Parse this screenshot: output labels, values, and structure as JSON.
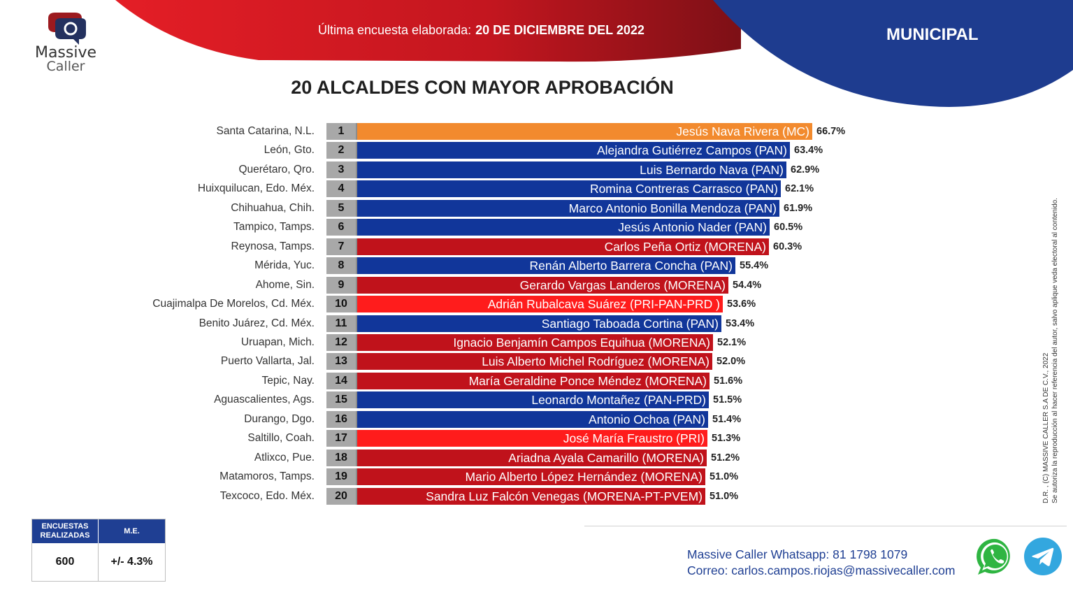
{
  "header": {
    "date_prefix": "Última encuesta elaborada:",
    "date": "20 DE DICIEMBRE DEL 2022",
    "section": "MUNICIPAL"
  },
  "logo": {
    "line1": "Massive",
    "line2": "Caller"
  },
  "colors": {
    "red_dark": "#c2161f",
    "navy": "#1e3c8f",
    "orange": "#f28a2e",
    "pan_blue": "#11369a",
    "morena_red": "#c0121b",
    "pri_red": "#ff1c1c"
  },
  "chart_data": {
    "type": "bar",
    "orientation": "horizontal",
    "title": "20 ALCALDES CON MAYOR APROBACIÓN",
    "xlim": [
      0,
      70
    ],
    "items": [
      {
        "rank": "1",
        "city": "Santa Catarina, N.L.",
        "name": "Jesús Nava Rivera (MC)",
        "value": 66.7,
        "label": "66.7%",
        "color": "#f28a2e"
      },
      {
        "rank": "2",
        "city": "León, Gto.",
        "name": "Alejandra Gutiérrez Campos (PAN)",
        "value": 63.4,
        "label": "63.4%",
        "color": "#11369a"
      },
      {
        "rank": "3",
        "city": "Querétaro, Qro.",
        "name": "Luis Bernardo Nava (PAN)",
        "value": 62.9,
        "label": "62.9%",
        "color": "#11369a"
      },
      {
        "rank": "4",
        "city": "Huixquilucan, Edo. Méx.",
        "name": "Romina Contreras Carrasco  (PAN)",
        "value": 62.1,
        "label": "62.1%",
        "color": "#11369a"
      },
      {
        "rank": "5",
        "city": "Chihuahua, Chih.",
        "name": "Marco Antonio Bonilla Mendoza (PAN)",
        "value": 61.9,
        "label": "61.9%",
        "color": "#11369a"
      },
      {
        "rank": "6",
        "city": "Tampico, Tamps.",
        "name": "Jesús Antonio Nader  (PAN)",
        "value": 60.5,
        "label": "60.5%",
        "color": "#11369a"
      },
      {
        "rank": "7",
        "city": "Reynosa, Tamps.",
        "name": "Carlos Peña Ortiz (MORENA)",
        "value": 60.3,
        "label": "60.3%",
        "color": "#c0121b"
      },
      {
        "rank": "8",
        "city": "Mérida, Yuc.",
        "name": "Renán Alberto Barrera Concha (PAN)",
        "value": 55.4,
        "label": "55.4%",
        "color": "#11369a"
      },
      {
        "rank": "9",
        "city": "Ahome, Sin.",
        "name": "Gerardo Vargas Landeros (MORENA)",
        "value": 54.4,
        "label": "54.4%",
        "color": "#c0121b"
      },
      {
        "rank": "10",
        "city": "Cuajimalpa De Morelos, Cd. Méx.",
        "name": "Adrián Rubalcava Suárez (PRI-PAN-PRD )",
        "value": 53.6,
        "label": "53.6%",
        "color": "#ff1c1c"
      },
      {
        "rank": "11",
        "city": "Benito Juárez, Cd. Méx.",
        "name": "Santiago Taboada Cortina (PAN)",
        "value": 53.4,
        "label": "53.4%",
        "color": "#11369a"
      },
      {
        "rank": "12",
        "city": "Uruapan, Mich.",
        "name": "Ignacio Benjamín Campos Equihua (MORENA)",
        "value": 52.1,
        "label": "52.1%",
        "color": "#c0121b"
      },
      {
        "rank": "13",
        "city": "Puerto Vallarta, Jal.",
        "name": "Luis Alberto Michel Rodríguez (MORENA)",
        "value": 52.0,
        "label": "52.0%",
        "color": "#c0121b"
      },
      {
        "rank": "14",
        "city": "Tepic, Nay.",
        "name": "María Geraldine Ponce Méndez (MORENA)",
        "value": 51.6,
        "label": "51.6%",
        "color": "#c0121b"
      },
      {
        "rank": "15",
        "city": "Aguascalientes, Ags.",
        "name": "Leonardo Montañez (PAN-PRD)",
        "value": 51.5,
        "label": "51.5%",
        "color": "#11369a"
      },
      {
        "rank": "16",
        "city": "Durango, Dgo.",
        "name": "Antonio Ochoa (PAN)",
        "value": 51.4,
        "label": "51.4%",
        "color": "#11369a"
      },
      {
        "rank": "17",
        "city": "Saltillo, Coah.",
        "name": "José María Fraustro (PRI)",
        "value": 51.3,
        "label": "51.3%",
        "color": "#ff1c1c"
      },
      {
        "rank": "18",
        "city": "Atlixco, Pue.",
        "name": "Ariadna Ayala Camarillo  (MORENA)",
        "value": 51.2,
        "label": "51.2%",
        "color": "#c0121b"
      },
      {
        "rank": "19",
        "city": "Matamoros, Tamps.",
        "name": "Mario Alberto López Hernández (MORENA)",
        "value": 51.0,
        "label": "51.0%",
        "color": "#c0121b"
      },
      {
        "rank": "20",
        "city": "Texcoco, Edo. Méx.",
        "name": "Sandra Luz Falcón Venegas (MORENA-PT-PVEM)",
        "value": 51.0,
        "label": "51.0%",
        "color": "#c0121b"
      }
    ]
  },
  "side_note": {
    "line1": "D.R. , (C) MASSIVE CALLER S.A DE C.V., 2022",
    "line2": "Se autoriza la reproducción al hacer referencia del autor, salvo aplique veda electoral al contenido."
  },
  "stats": {
    "surveys_label": "ENCUESTAS REALIZADAS",
    "surveys_value": "600",
    "me_label": "M.E.",
    "me_value": "+/- 4.3%"
  },
  "contact": {
    "whatsapp_label": "Massive Caller Whatsapp:",
    "whatsapp_number": "81 1798 1079",
    "email_label": "Correo:",
    "email": "carlos.campos.riojas@massivecaller.com"
  }
}
